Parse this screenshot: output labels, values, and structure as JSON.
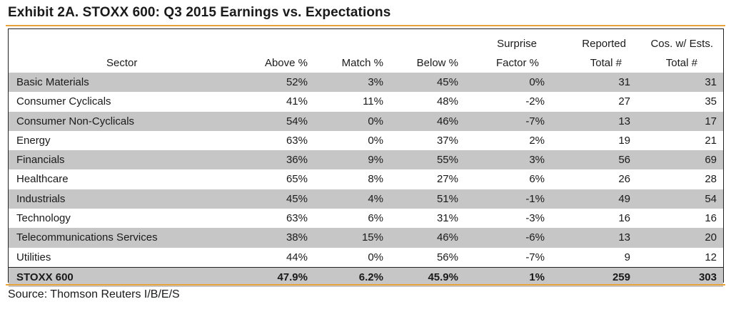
{
  "title": "Exhibit 2A.  STOXX 600: Q3 2015 Earnings vs. Expectations",
  "colors": {
    "accent_rule": "#e8a33d",
    "row_shade": "#c6c6c6"
  },
  "table": {
    "headers": {
      "sector": "Sector",
      "above": "Above %",
      "match": "Match %",
      "below": "Below %",
      "surprise_1": "Surprise",
      "surprise_2": "Factor %",
      "reported_1": "Reported",
      "reported_2": "Total #",
      "cos_1": "Cos. w/ Ests.",
      "cos_2": "Total #"
    },
    "rows": [
      {
        "sector": "Basic Materials",
        "above": "52%",
        "match": "3%",
        "below": "45%",
        "surprise": "0%",
        "reported": "31",
        "cos": "31"
      },
      {
        "sector": "Consumer Cyclicals",
        "above": "41%",
        "match": "11%",
        "below": "48%",
        "surprise": "-2%",
        "reported": "27",
        "cos": "35"
      },
      {
        "sector": "Consumer Non-Cyclicals",
        "above": "54%",
        "match": "0%",
        "below": "46%",
        "surprise": "-7%",
        "reported": "13",
        "cos": "17"
      },
      {
        "sector": "Energy",
        "above": "63%",
        "match": "0%",
        "below": "37%",
        "surprise": "2%",
        "reported": "19",
        "cos": "21"
      },
      {
        "sector": "Financials",
        "above": "36%",
        "match": "9%",
        "below": "55%",
        "surprise": "3%",
        "reported": "56",
        "cos": "69"
      },
      {
        "sector": "Healthcare",
        "above": "65%",
        "match": "8%",
        "below": "27%",
        "surprise": "6%",
        "reported": "26",
        "cos": "28"
      },
      {
        "sector": "Industrials",
        "above": "45%",
        "match": "4%",
        "below": "51%",
        "surprise": "-1%",
        "reported": "49",
        "cos": "54"
      },
      {
        "sector": "Technology",
        "above": "63%",
        "match": "6%",
        "below": "31%",
        "surprise": "-3%",
        "reported": "16",
        "cos": "16"
      },
      {
        "sector": "Telecommunications Services",
        "above": "38%",
        "match": "15%",
        "below": "46%",
        "surprise": "-6%",
        "reported": "13",
        "cos": "20"
      },
      {
        "sector": "Utilities",
        "above": "44%",
        "match": "0%",
        "below": "56%",
        "surprise": "-7%",
        "reported": "9",
        "cos": "12"
      }
    ],
    "total": {
      "sector": "STOXX 600",
      "above": "47.9%",
      "match": "6.2%",
      "below": "45.9%",
      "surprise": "1%",
      "reported": "259",
      "cos": "303"
    }
  },
  "source": "Source: Thomson Reuters I/B/E/S"
}
